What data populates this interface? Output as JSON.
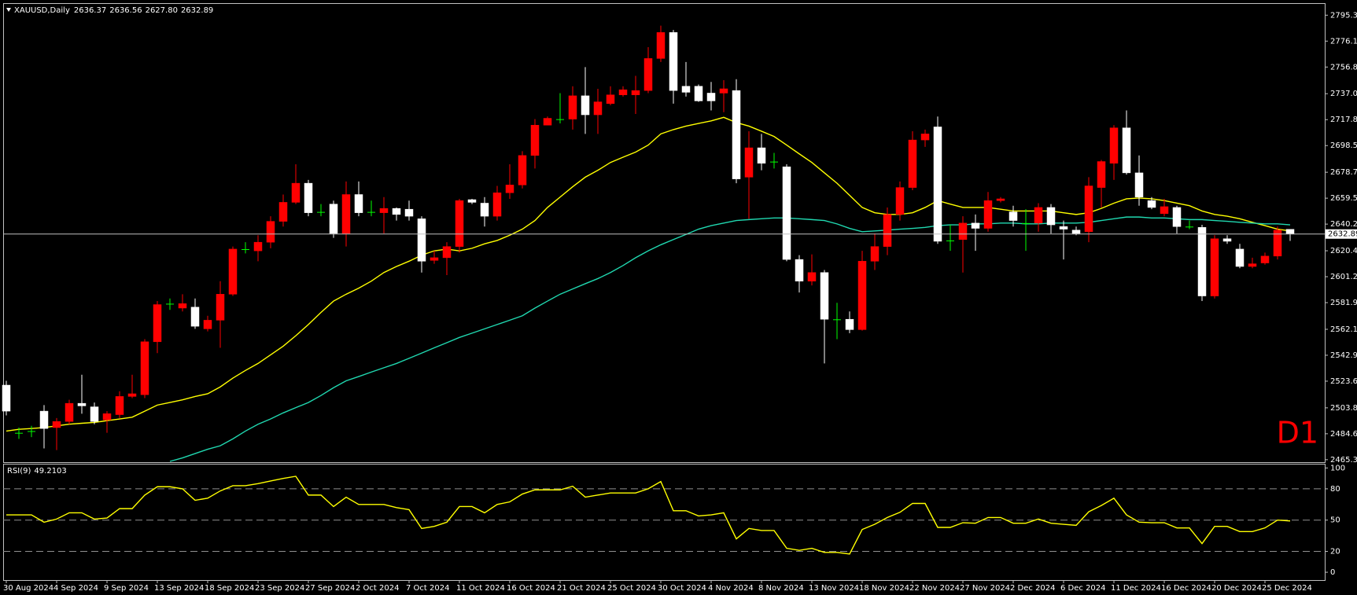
{
  "chart_data": [
    {
      "type": "candlestick",
      "title": "XAUUSD,Daily",
      "last_labels": [
        "2636.37",
        "2636.56",
        "2627.80",
        "2632.89"
      ],
      "annotation": "D1",
      "categories": [
        "30 Aug 2024",
        null,
        null,
        null,
        "4 Sep 2024",
        null,
        null,
        null,
        "9 Sep 2024",
        null,
        null,
        null,
        "13 Sep 2024",
        null,
        null,
        null,
        "18 Sep 2024",
        null,
        null,
        null,
        "23 Sep 2024",
        null,
        null,
        null,
        "27 Sep 2024",
        null,
        null,
        null,
        "2 Oct 2024",
        null,
        null,
        null,
        "7 Oct 2024",
        null,
        null,
        null,
        "11 Oct 2024",
        null,
        null,
        null,
        "16 Oct 2024",
        null,
        null,
        null,
        "21 Oct 2024",
        null,
        null,
        null,
        "25 Oct 2024",
        null,
        null,
        null,
        "30 Oct 2024",
        null,
        null,
        null,
        "4 Nov 2024",
        null,
        null,
        null,
        "8 Nov 2024",
        null,
        null,
        null,
        "13 Nov 2024",
        null,
        null,
        null,
        "18 Nov 2024",
        null,
        null,
        null,
        "22 Nov 2024",
        null,
        null,
        null,
        "27 Nov 2024",
        null,
        null,
        null,
        "2 Dec 2024",
        null,
        null,
        null,
        "6 Dec 2024",
        null,
        null,
        null,
        "11 Dec 2024",
        null,
        null,
        null,
        "16 Dec 2024",
        null,
        null,
        null,
        "20 Dec 2024",
        null,
        null,
        null,
        "25 Dec 2024",
        null,
        null
      ],
      "open": [
        2520.7,
        2485.3,
        2486.6,
        2501.4,
        2489.2,
        2493.7,
        2507.2,
        2504.6,
        2494.9,
        2498.8,
        2512.3,
        2513.6,
        2552.9,
        2581.2,
        2577.9,
        2578.6,
        2562.5,
        2568.9,
        2588.2,
        2621.7,
        2620.4,
        2626.8,
        2642.3,
        2656.4,
        2670.6,
        2649.3,
        2655.1,
        2633.3,
        2662.2,
        2649.3,
        2648.7,
        2651.9,
        2651.3,
        2644.2,
        2613.3,
        2615.3,
        2623.6,
        2658.4,
        2655.8,
        2646.1,
        2663.5,
        2669.3,
        2691.2,
        2713.7,
        2718.2,
        2718.2,
        2735.5,
        2721.4,
        2729.7,
        2736.2,
        2736.2,
        2739.4,
        2763.2,
        2782.5,
        2742.6,
        2742.6,
        2737.5,
        2737.5,
        2739.4,
        2675.1,
        2696.9,
        2686.7,
        2682.8,
        2614.0,
        2597.9,
        2604.3,
        2569.6,
        2569.6,
        2561.9,
        2612.7,
        2623.6,
        2647.4,
        2667.4,
        2702.7,
        2712.4,
        2628.1,
        2628.8,
        2641.0,
        2637.1,
        2657.7,
        2649.3,
        2641.0,
        2641.0,
        2652.6,
        2638.4,
        2635.8,
        2634.6,
        2667.4,
        2685.4,
        2711.7,
        2678.3,
        2657.7,
        2648.0,
        2652.6,
        2638.4,
        2637.8,
        2586.9,
        2629.4,
        2621.7,
        2608.8,
        2611.4,
        2616.5,
        2636.37
      ],
      "high": [
        2523.9,
        2489.2,
        2490.5,
        2505.9,
        2496.3,
        2509.8,
        2528.4,
        2507.8,
        2501.4,
        2516.2,
        2528.4,
        2554.8,
        2583.1,
        2585.0,
        2588.2,
        2585.0,
        2572.2,
        2597.9,
        2623.6,
        2626.8,
        2632.0,
        2646.1,
        2662.2,
        2684.7,
        2673.1,
        2655.1,
        2657.7,
        2671.9,
        2671.9,
        2657.7,
        2660.3,
        2652.6,
        2657.7,
        2646.1,
        2620.4,
        2626.8,
        2659.0,
        2659.0,
        2660.3,
        2668.6,
        2684.7,
        2694.4,
        2718.2,
        2720.1,
        2737.5,
        2742.6,
        2756.8,
        2740.7,
        2742.6,
        2742.6,
        2750.3,
        2771.6,
        2787.6,
        2784.4,
        2760.6,
        2743.9,
        2745.8,
        2747.1,
        2747.8,
        2709.2,
        2707.2,
        2693.1,
        2684.7,
        2617.2,
        2617.8,
        2606.2,
        2581.8,
        2575.4,
        2620.4,
        2633.3,
        2652.6,
        2671.9,
        2709.2,
        2710.4,
        2720.1,
        2639.7,
        2646.1,
        2647.4,
        2664.1,
        2660.3,
        2653.9,
        2651.3,
        2655.8,
        2655.1,
        2642.9,
        2638.4,
        2675.1,
        2687.9,
        2713.7,
        2724.6,
        2691.2,
        2660.3,
        2659.0,
        2653.9,
        2642.9,
        2639.7,
        2632.0,
        2632.0,
        2625.6,
        2615.3,
        2619.1,
        2638.4,
        2636.56
      ],
      "low": [
        2498.2,
        2480.8,
        2482.1,
        2473.7,
        2472.5,
        2491.7,
        2499.5,
        2491.7,
        2485.3,
        2496.3,
        2511.1,
        2511.1,
        2544.5,
        2576.6,
        2575.4,
        2562.5,
        2560.6,
        2548.4,
        2586.9,
        2618.5,
        2612.7,
        2622.3,
        2638.4,
        2655.1,
        2646.1,
        2646.1,
        2630.0,
        2623.6,
        2646.1,
        2646.1,
        2633.3,
        2642.9,
        2642.9,
        2604.3,
        2610.8,
        2602.4,
        2619.1,
        2655.1,
        2638.4,
        2642.9,
        2659.0,
        2666.7,
        2681.5,
        2713.7,
        2715.0,
        2710.4,
        2707.2,
        2707.2,
        2728.5,
        2734.9,
        2722.0,
        2737.5,
        2760.6,
        2729.7,
        2734.9,
        2731.0,
        2724.6,
        2723.3,
        2670.6,
        2644.2,
        2680.2,
        2681.5,
        2612.7,
        2589.5,
        2594.7,
        2536.8,
        2554.8,
        2559.3,
        2561.2,
        2606.2,
        2617.2,
        2642.9,
        2665.4,
        2697.6,
        2625.6,
        2620.4,
        2604.3,
        2620.4,
        2634.6,
        2656.4,
        2638.4,
        2620.4,
        2634.6,
        2633.3,
        2614.0,
        2632.0,
        2626.8,
        2652.6,
        2673.1,
        2677.0,
        2653.9,
        2651.3,
        2646.1,
        2633.3,
        2636.5,
        2583.1,
        2585.0,
        2625.6,
        2607.5,
        2607.5,
        2610.1,
        2614.0,
        2627.8
      ],
      "close": [
        2501.4,
        2484.7,
        2486.0,
        2488.5,
        2493.7,
        2507.2,
        2505.3,
        2493.7,
        2499.5,
        2512.3,
        2514.3,
        2552.9,
        2580.5,
        2580.5,
        2581.2,
        2564.4,
        2568.9,
        2588.2,
        2621.7,
        2621.0,
        2626.8,
        2642.3,
        2656.4,
        2670.6,
        2648.7,
        2648.7,
        2633.3,
        2662.2,
        2648.7,
        2648.7,
        2651.9,
        2647.4,
        2646.1,
        2612.7,
        2615.3,
        2623.6,
        2657.7,
        2656.4,
        2646.1,
        2663.5,
        2669.3,
        2691.2,
        2713.7,
        2718.8,
        2717.5,
        2735.5,
        2721.4,
        2731.0,
        2736.2,
        2740.0,
        2739.4,
        2763.2,
        2782.5,
        2739.4,
        2738.1,
        2731.7,
        2731.7,
        2740.7,
        2673.8,
        2696.9,
        2685.4,
        2686.0,
        2614.0,
        2597.9,
        2604.3,
        2569.6,
        2568.9,
        2561.9,
        2612.7,
        2623.6,
        2647.4,
        2667.4,
        2702.7,
        2707.2,
        2627.5,
        2627.5,
        2641.0,
        2637.1,
        2657.7,
        2659.0,
        2642.9,
        2640.4,
        2652.6,
        2639.7,
        2636.5,
        2633.3,
        2668.6,
        2686.7,
        2711.7,
        2678.3,
        2660.3,
        2652.6,
        2653.2,
        2638.4,
        2637.8,
        2586.9,
        2629.4,
        2627.5,
        2608.8,
        2610.8,
        2616.5,
        2635.8,
        2632.89
      ],
      "up_color": "#ff0000",
      "down_color": "#ffffff",
      "doji_color": "#00ff00",
      "price_line_color": "#c0c0c0",
      "series": [
        {
          "color": "#ffff00",
          "values": [
            2486.6,
            2487.9,
            2488.5,
            2489.2,
            2490.5,
            2491.7,
            2492.4,
            2493.0,
            2494.3,
            2495.6,
            2496.9,
            2501.4,
            2505.9,
            2507.8,
            2509.8,
            2512.3,
            2514.3,
            2519.4,
            2525.9,
            2531.6,
            2536.8,
            2543.2,
            2549.6,
            2557.4,
            2565.7,
            2574.7,
            2583.1,
            2588.2,
            2592.7,
            2597.9,
            2604.3,
            2608.8,
            2612.7,
            2617.2,
            2620.4,
            2621.7,
            2620.4,
            2622.3,
            2625.6,
            2628.1,
            2632.0,
            2636.5,
            2642.9,
            2652.6,
            2660.3,
            2668.0,
            2675.1,
            2680.2,
            2686.0,
            2689.9,
            2693.7,
            2698.9,
            2707.2,
            2710.4,
            2713.0,
            2715.0,
            2716.9,
            2719.5,
            2715.6,
            2713.0,
            2709.2,
            2705.3,
            2698.9,
            2692.4,
            2686.0,
            2678.3,
            2670.6,
            2661.6,
            2652.6,
            2648.7,
            2647.4,
            2647.4,
            2648.7,
            2652.6,
            2657.7,
            2655.1,
            2652.6,
            2652.6,
            2652.6,
            2651.3,
            2650.0,
            2650.0,
            2650.0,
            2650.0,
            2648.7,
            2647.4,
            2648.7,
            2651.9,
            2655.8,
            2659.0,
            2659.6,
            2659.0,
            2657.7,
            2655.8,
            2653.9,
            2650.0,
            2647.4,
            2646.1,
            2644.2,
            2641.6,
            2639.1,
            2636.5,
            2635.2
          ]
        },
        {
          "color": "#20d8b0",
          "values": [
            null,
            null,
            null,
            null,
            null,
            null,
            null,
            null,
            null,
            null,
            null,
            null,
            null,
            2464.1,
            2466.7,
            2469.9,
            2473.1,
            2475.7,
            2480.8,
            2486.6,
            2491.7,
            2495.6,
            2500.1,
            2504.0,
            2507.8,
            2513.0,
            2518.8,
            2523.9,
            2527.1,
            2530.4,
            2533.6,
            2536.8,
            2540.6,
            2544.5,
            2548.4,
            2552.2,
            2556.1,
            2559.3,
            2562.5,
            2565.7,
            2568.9,
            2572.2,
            2577.9,
            2583.1,
            2588.2,
            2592.1,
            2596.0,
            2599.8,
            2604.3,
            2609.5,
            2615.3,
            2620.4,
            2624.9,
            2628.8,
            2632.6,
            2636.5,
            2639.1,
            2641.0,
            2642.9,
            2643.6,
            2644.2,
            2644.8,
            2644.8,
            2644.2,
            2643.6,
            2642.9,
            2640.4,
            2637.1,
            2634.6,
            2635.2,
            2635.8,
            2636.5,
            2637.1,
            2637.8,
            2639.1,
            2639.7,
            2639.7,
            2640.4,
            2640.4,
            2641.0,
            2641.0,
            2640.4,
            2640.4,
            2641.0,
            2641.0,
            2641.0,
            2641.6,
            2642.9,
            2644.2,
            2645.5,
            2645.5,
            2644.8,
            2644.8,
            2644.2,
            2643.6,
            2643.6,
            2642.9,
            2642.3,
            2641.6,
            2641.0,
            2640.4,
            2640.4,
            2639.7
          ]
        }
      ],
      "ylim": [
        2464.1,
        2803.7
      ],
      "yticks": [
        {
          "value": 2795.35,
          "label": "2795.35"
        },
        {
          "value": 2776.1,
          "label": "2776.10"
        },
        {
          "value": 2756.85,
          "label": "2756.85"
        },
        {
          "value": 2737.05,
          "label": "2737.05"
        },
        {
          "value": 2717.8,
          "label": "2717.80"
        },
        {
          "value": 2698.55,
          "label": "2698.55"
        },
        {
          "value": 2678.75,
          "label": "2678.75"
        },
        {
          "value": 2659.5,
          "label": "2659.50"
        },
        {
          "value": 2640.25,
          "label": "2640.25"
        },
        {
          "value": 2620.45,
          "label": "2620.45"
        },
        {
          "value": 2601.2,
          "label": "2601.20"
        },
        {
          "value": 2581.95,
          "label": "2581.95"
        },
        {
          "value": 2562.15,
          "label": "2562.15"
        },
        {
          "value": 2542.9,
          "label": "2542.90"
        },
        {
          "value": 2523.65,
          "label": "2523.65"
        },
        {
          "value": 2503.85,
          "label": "2503.85"
        },
        {
          "value": 2484.6,
          "label": "2484.60"
        },
        {
          "value": 2465.35,
          "label": "2465.35"
        }
      ],
      "grid": false
    },
    {
      "type": "line",
      "title": "RSI(9)",
      "color": "#ffff00",
      "values": [
        55,
        55,
        55,
        48,
        51,
        57,
        57,
        51,
        52,
        61,
        61,
        74,
        82,
        82,
        80,
        69,
        71,
        78,
        83,
        83,
        85,
        87.5,
        90,
        92,
        74,
        74,
        63,
        72,
        65,
        65,
        65,
        62,
        60,
        42,
        44,
        48,
        63,
        63,
        57,
        65,
        67.5,
        75,
        79,
        79,
        79,
        82.5,
        72,
        74,
        76,
        76,
        76,
        80,
        87,
        59,
        59,
        54,
        55,
        57,
        32,
        42,
        40,
        40,
        23,
        21,
        23,
        19,
        19,
        17.5,
        41,
        46,
        52.5,
        57.5,
        66,
        66,
        43,
        43,
        47.5,
        47,
        52.5,
        52.5,
        47,
        47,
        51,
        47,
        46,
        45,
        58,
        64,
        71,
        55,
        48,
        47.5,
        47.5,
        42.5,
        42.5,
        27.5,
        44,
        44,
        39,
        39,
        42.5,
        50,
        49.2103
      ],
      "ylim": [
        -7.5,
        103.3
      ],
      "yticks": [
        100,
        80,
        50,
        20,
        0
      ],
      "levels": [
        80,
        50,
        20
      ],
      "grid": false
    }
  ]
}
